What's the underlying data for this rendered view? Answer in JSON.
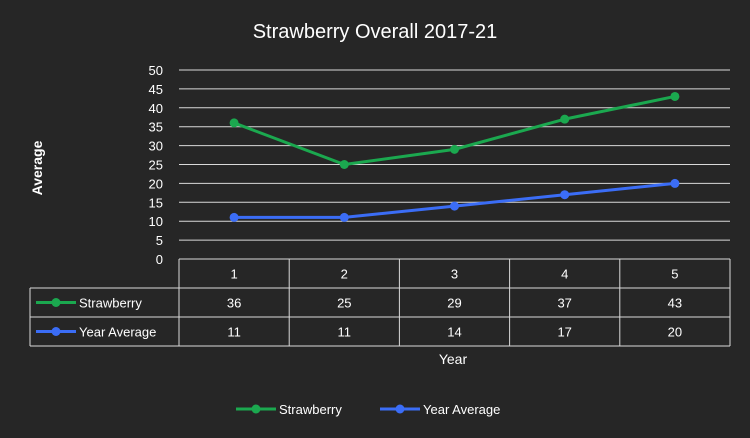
{
  "chart_data": {
    "type": "line",
    "title": "Strawberry Overall 2017-21",
    "xlabel": "Year",
    "ylabel": "Average",
    "categories": [
      "1",
      "2",
      "3",
      "4",
      "5"
    ],
    "yticks": [
      "0",
      "5",
      "10",
      "15",
      "20",
      "25",
      "30",
      "35",
      "40",
      "45",
      "50"
    ],
    "ylim": [
      0,
      50
    ],
    "grid": true,
    "legend_position": "bottom",
    "data_table": true,
    "series": [
      {
        "name": "Strawberry",
        "color": "#1ba84f",
        "values": [
          36,
          25,
          29,
          37,
          43
        ],
        "labels": [
          "36",
          "25",
          "29",
          "37",
          "43"
        ]
      },
      {
        "name": "Year Average",
        "color": "#3b6df6",
        "values": [
          11,
          11,
          14,
          17,
          20
        ],
        "labels": [
          "11",
          "11",
          "14",
          "17",
          "20"
        ]
      }
    ]
  }
}
